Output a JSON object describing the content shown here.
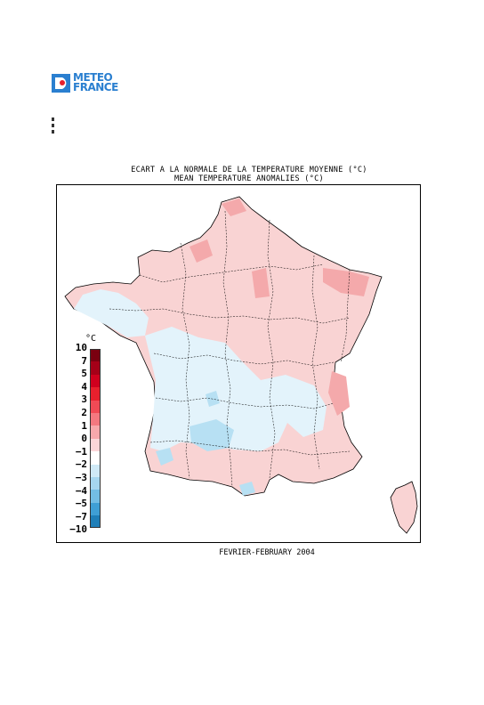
{
  "brand": {
    "logo_text_line1": "METEO",
    "logo_text_line2": "FRANCE"
  },
  "map": {
    "title_fr": "ECART A LA NORMALE DE LA TEMPERATURE MOYENNE (°C)",
    "title_en": "MEAN TEMPERATURE ANOMALIES (°C)",
    "period": "FEVRIER-FEBRUARY 2004",
    "legend_unit": "°C",
    "legend_labels": [
      "10",
      "7",
      "5",
      "4",
      "3",
      "2",
      "1",
      "0",
      "-1",
      "-2",
      "-3",
      "-4",
      "-5",
      "-7",
      "-10"
    ],
    "legend_colors": [
      "#7a0010",
      "#a50018",
      "#d0001e",
      "#e8202d",
      "#f04a55",
      "#f47880",
      "#f8a8ac",
      "#fcd6d8",
      "#ffffff",
      "#cfe9f6",
      "#a6d6ef",
      "#73bde4",
      "#3f9fd5",
      "#1f7fb8",
      "#0b5d8c",
      "#074766"
    ],
    "colors": {
      "slight_warm": "#f9d3d3",
      "warm": "#f4a9ab",
      "slight_cold": "#e3f3fb",
      "cold": "#b7e0f3",
      "brand": "#2a7fd0"
    }
  }
}
